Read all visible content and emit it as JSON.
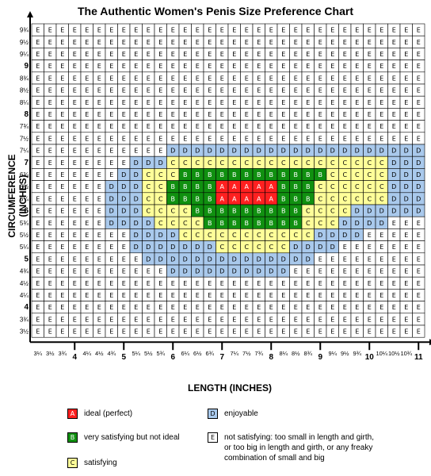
{
  "chart_data": {
    "type": "heatmap",
    "title": "The Authentic Women's Penis Size Preference Chart",
    "xlabel": "LENGTH  (INCHES)",
    "ylabel": "CIRCUMFERENCE (INCHES)",
    "x_values": [
      3.25,
      3.5,
      3.75,
      4,
      4.25,
      4.5,
      4.75,
      5,
      5.25,
      5.5,
      5.75,
      6,
      6.25,
      6.5,
      6.75,
      7,
      7.25,
      7.5,
      7.75,
      8,
      8.25,
      8.5,
      8.75,
      9,
      9.25,
      9.5,
      9.75,
      10,
      10.25,
      10.5,
      10.75,
      11
    ],
    "x_tick_labels": [
      "3¼",
      "3½",
      "3¾",
      "4",
      "4¼",
      "4½",
      "4¾",
      "5",
      "5¼",
      "5½",
      "5¾",
      "6",
      "6¼",
      "6½",
      "6¾",
      "7",
      "7¼",
      "7½",
      "7¾",
      "8",
      "8¼",
      "8½",
      "8¾",
      "9",
      "9¼",
      "9½",
      "9¾",
      "10",
      "10¼",
      "10½",
      "10¾",
      "11"
    ],
    "y_values": [
      9.75,
      9.5,
      9.25,
      9,
      8.75,
      8.5,
      8.25,
      8,
      7.75,
      7.5,
      7.25,
      7,
      6.75,
      6.5,
      6.25,
      6,
      5.75,
      5.5,
      5.25,
      5,
      4.75,
      4.5,
      4.25,
      4,
      3.75,
      3.5
    ],
    "y_tick_labels": [
      "9¾",
      "9½",
      "9¼",
      "9",
      "8¾",
      "8½",
      "8¼",
      "8",
      "7¾",
      "7½",
      "7¼",
      "7",
      "6¾",
      "6½",
      "6¼",
      "6",
      "5¾",
      "5½",
      "5¼",
      "5",
      "4¾",
      "4½",
      "4¼",
      "4",
      "3¾",
      "3½"
    ],
    "grid": [
      "EEEEEEEEEEEEEEEEEEEEEEEEEEEEEEEE",
      "EEEEEEEEEEEEEEEEEEEEEEEEEEEEEEEE",
      "EEEEEEEEEEEEEEEEEEEEEEEEEEEEEEEE",
      "EEEEEEEEEEEEEEEEEEEEEEEEEEEEEEEE",
      "EEEEEEEEEEEEEEEEEEEEEEEEEEEEEEEE",
      "EEEEEEEEEEEEEEEEEEEEEEEEEEEEEEEE",
      "EEEEEEEEEEEEEEEEEEEEEEEEEEEEEEEE",
      "EEEEEEEEEEEEEEEEEEEEEEEEEEEEEEEE",
      "EEEEEEEEEEEEEEEEEEEEEEEEEEEEEEEE",
      "EEEEEEEEEEEEEEEEEEEEEEEEEEEEEEEE",
      "EEEEEEEEEEEDDDDDDDDDDDDDDDDDDDDD",
      "EEEEEEEEDDDCCCCCCCCCCCCCCCCCCDDD",
      "EEEEEEEDDCCCBBBBBBBBBBBBCCCCCDDD",
      "EEEEEEDDDCCBBBBAAAAABBBCCCCCCDDD",
      "EEEEEEDDDCCBBBBAAAAABBBCCCCCCDDD",
      "EEEEEEDDDCCCCBBBBBBBBBCCCCDDDDDD",
      "EEEEEEDDDDCCCCBBBBBBBBCCCDDDDEEE",
      "EEEEEEEEDDDDCCCCCCCCCCCDDDDEEEEE",
      "EEEEEEEEDDDDDDDCCCCCCDDDDEEEEEEE",
      "EEEEEEEEEDDDDDDDDDDDDDDEEEEEEEEE",
      "EEEEEEEEEEEDDDDDDDDDDEEEEEEEEEEE",
      "EEEEEEEEEEEEEEEEEEEEEEEEEEEEEEEE",
      "EEEEEEEEEEEEEEEEEEEEEEEEEEEEEEEE",
      "EEEEEEEEEEEEEEEEEEEEEEEEEEEEEEEE",
      "EEEEEEEEEEEEEEEEEEEEEEEEEEEEEEEE",
      "EEEEEEEEEEEEEEEEEEEEEEEEEEEEEEEE"
    ],
    "categories": {
      "A": {
        "letter": "A",
        "label": "ideal (perfect)",
        "color": "#ff2020"
      },
      "B": {
        "letter": "B",
        "label": "very satisfying but not ideal",
        "color": "#109010"
      },
      "C": {
        "letter": "C",
        "label": "satisfying",
        "color": "#ffff99"
      },
      "D": {
        "letter": "D",
        "label": "enjoyable",
        "color": "#a9c9ec"
      },
      "E": {
        "letter": "E",
        "label": "not satisfying: too small in length and girth, or too big in length and girth, or any freaky combination of small and big",
        "color": "#ffffff"
      }
    }
  }
}
